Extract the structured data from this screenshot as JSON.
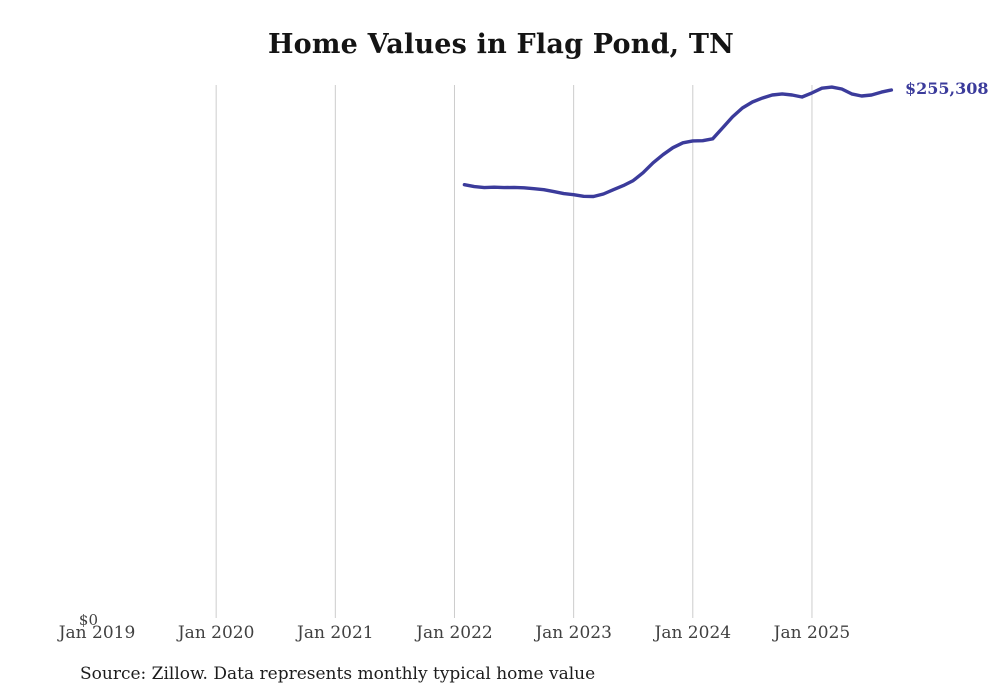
{
  "title": "Home Values in Flag Pond, TN",
  "source_note": "Source: Zillow. Data represents monthly typical home value",
  "chart_data": {
    "type": "line",
    "title": "Home Values in Flag Pond, TN",
    "xlabel": "",
    "ylabel": "",
    "grid": "vertical-only",
    "legend": "none",
    "line_color": "#3b3b9b",
    "grid_color": "#cccccc",
    "ylim": [
      0,
      258000
    ],
    "y_zero_label": "$0",
    "end_value_label": "$255,308",
    "end_value": 255308,
    "x_ticks": [
      {
        "label": "Jan 2019",
        "month": "2019-01",
        "gridline": false
      },
      {
        "label": "Jan 2020",
        "month": "2020-01",
        "gridline": true
      },
      {
        "label": "Jan 2021",
        "month": "2021-01",
        "gridline": true
      },
      {
        "label": "Jan 2022",
        "month": "2022-01",
        "gridline": true
      },
      {
        "label": "Jan 2023",
        "month": "2023-01",
        "gridline": true
      },
      {
        "label": "Jan 2024",
        "month": "2024-01",
        "gridline": true
      },
      {
        "label": "Jan 2025",
        "month": "2025-01",
        "gridline": true
      }
    ],
    "x": [
      "2022-02",
      "2022-03",
      "2022-04",
      "2022-05",
      "2022-06",
      "2022-07",
      "2022-08",
      "2022-09",
      "2022-10",
      "2022-11",
      "2022-12",
      "2023-01",
      "2023-02",
      "2023-03",
      "2023-04",
      "2023-05",
      "2023-06",
      "2023-07",
      "2023-08",
      "2023-09",
      "2023-10",
      "2023-11",
      "2023-12",
      "2024-01",
      "2024-02",
      "2024-03",
      "2024-04",
      "2024-05",
      "2024-06",
      "2024-07",
      "2024-08",
      "2024-09",
      "2024-10",
      "2024-11",
      "2024-12",
      "2025-01",
      "2025-02",
      "2025-03",
      "2025-04",
      "2025-05",
      "2025-06",
      "2025-07",
      "2025-08",
      "2025-09"
    ],
    "values": [
      209500,
      208600,
      208100,
      208300,
      208100,
      208200,
      208000,
      207600,
      207100,
      206200,
      205200,
      204700,
      203900,
      203800,
      205000,
      207100,
      209100,
      211500,
      215300,
      220100,
      224000,
      227400,
      229800,
      230700,
      230800,
      231700,
      237000,
      242300,
      246600,
      249500,
      251400,
      252900,
      253400,
      252900,
      251900,
      253900,
      256200,
      256700,
      255800,
      253400,
      252400,
      252900,
      254300,
      255308
    ]
  }
}
